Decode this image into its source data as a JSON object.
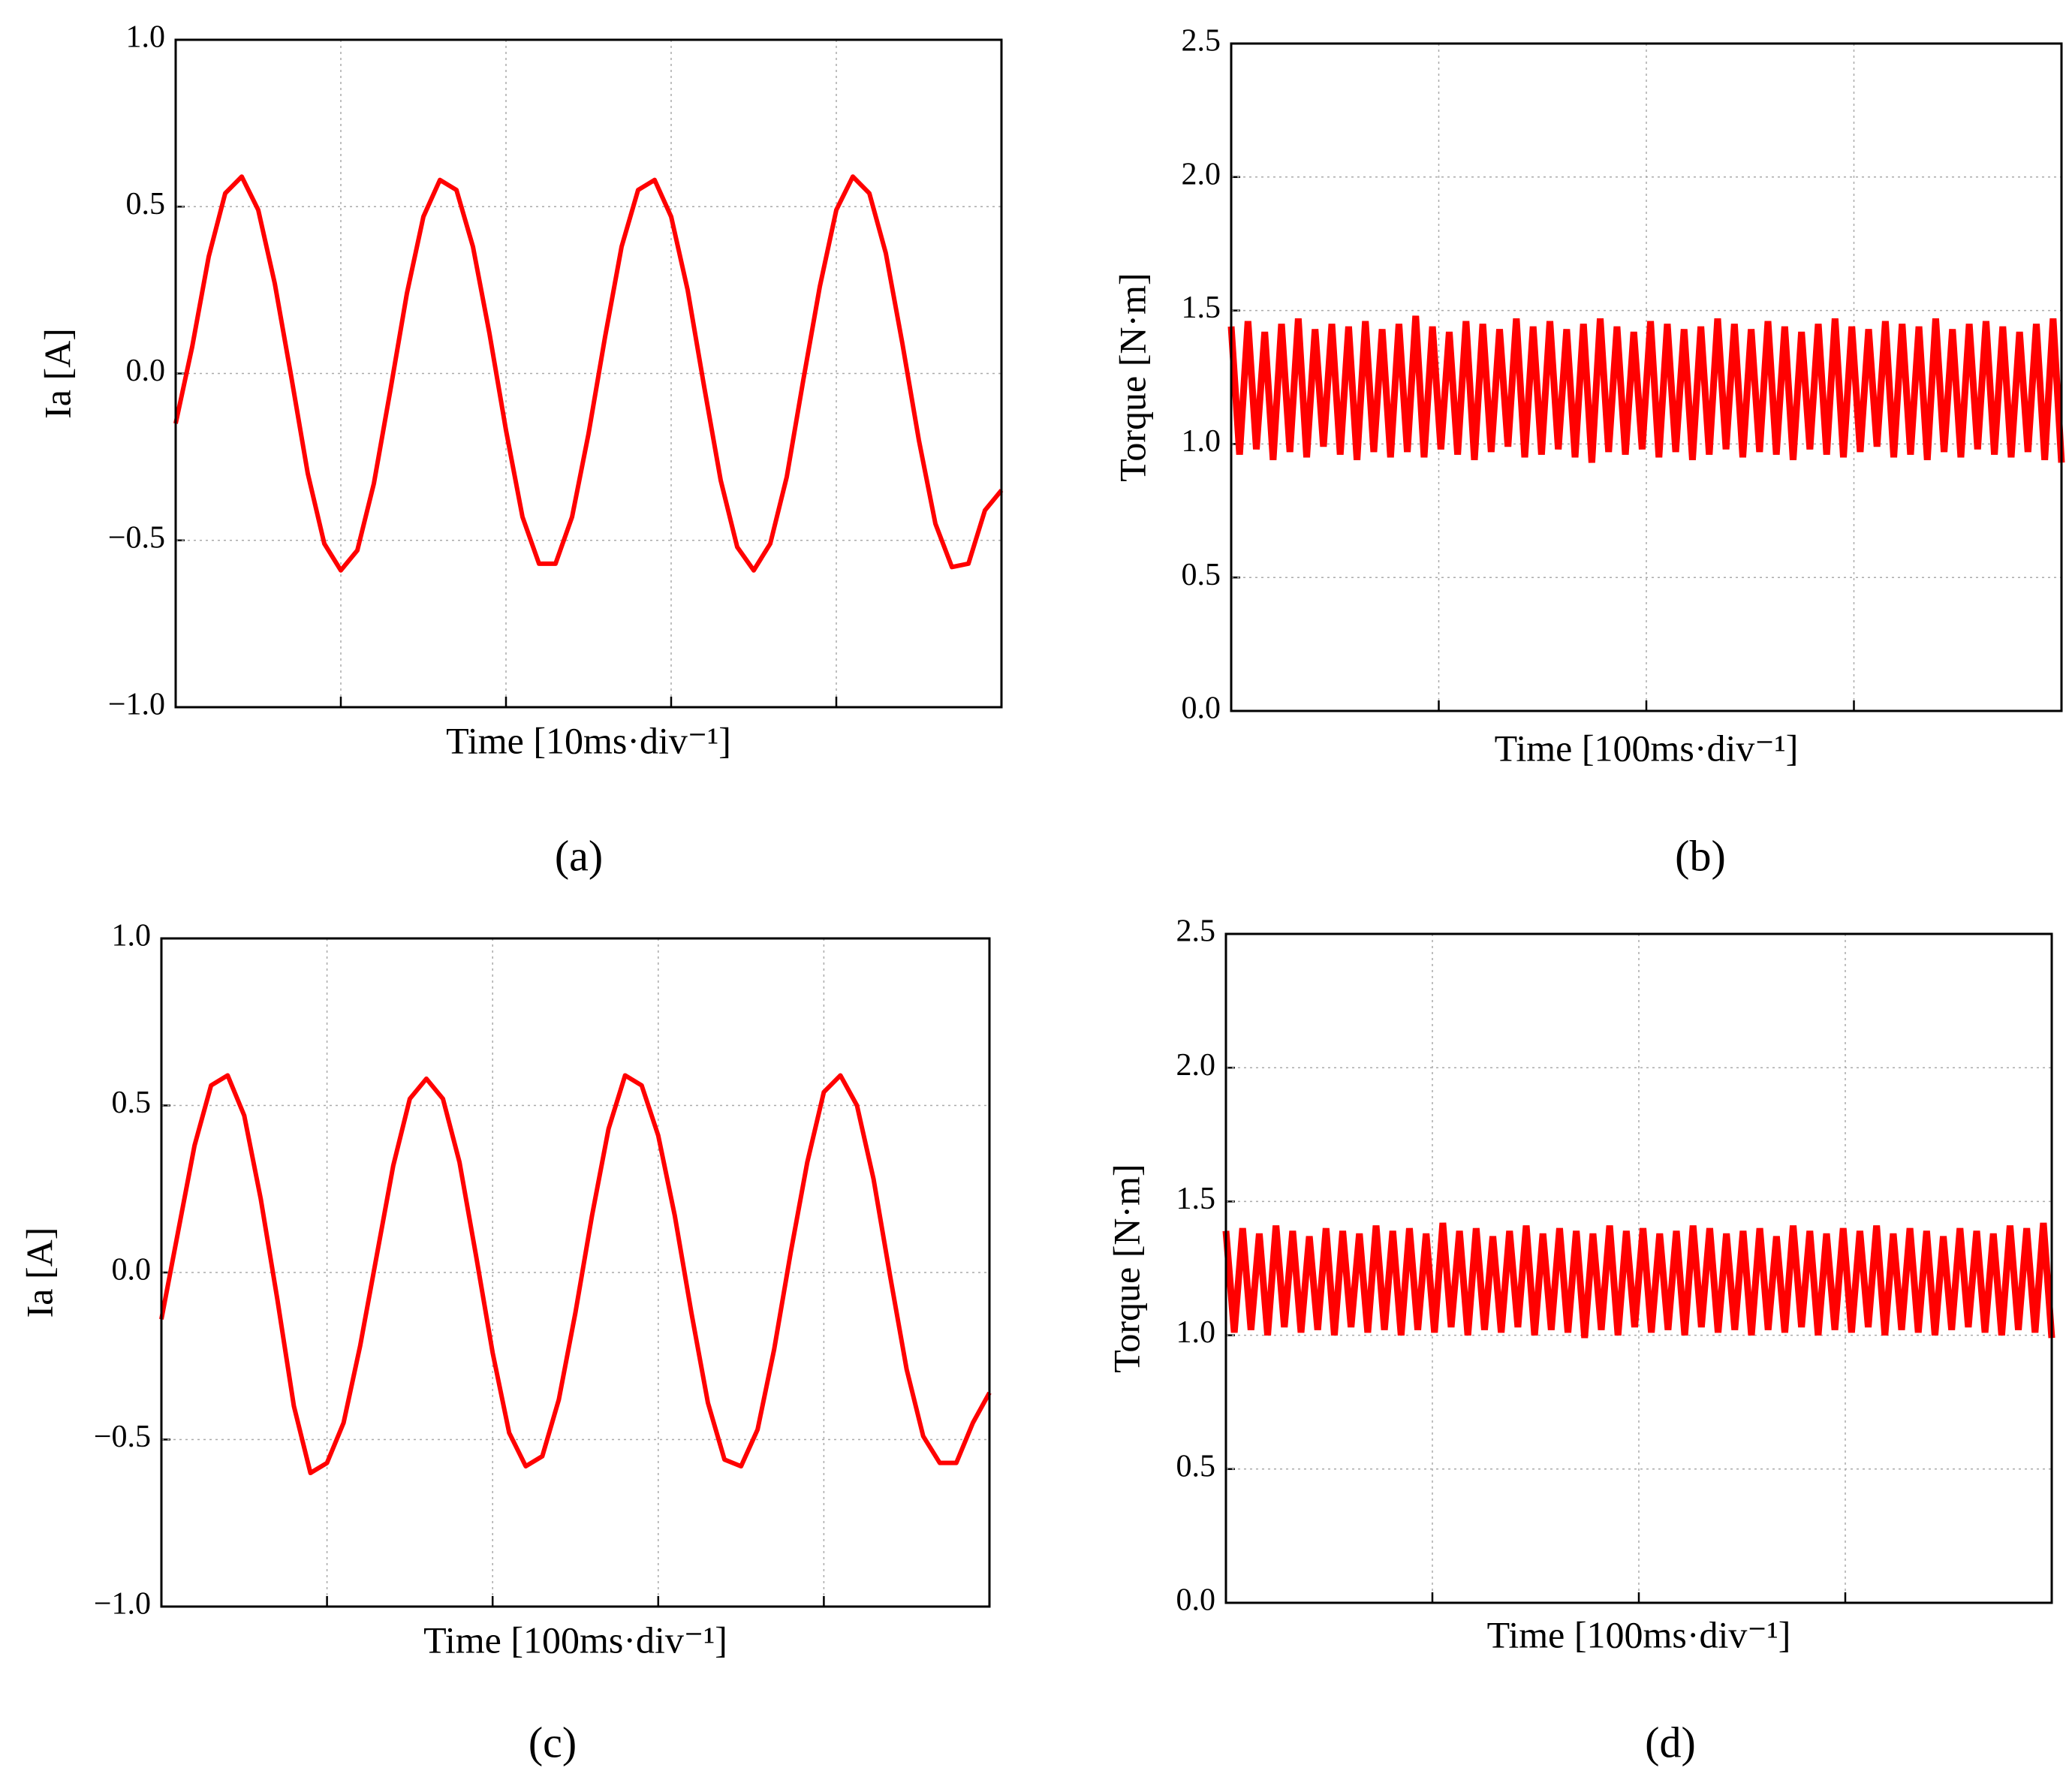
{
  "chart_data": [
    {
      "type": "line",
      "caption": "(a)",
      "xlabel": "Time [10ms·div⁻¹]",
      "ylabel": "Ia [A]",
      "color": "#ff0000",
      "xlim": [
        0,
        5
      ],
      "xticks": [
        1,
        2,
        3,
        4
      ],
      "ylim": [
        -1,
        1
      ],
      "yticks": [
        {
          "value": -1,
          "label": "−1.0"
        },
        {
          "value": -0.5,
          "label": "−0.5"
        },
        {
          "value": 0,
          "label": "0.0"
        },
        {
          "value": 0.5,
          "label": "0.5"
        },
        {
          "value": 1,
          "label": "1.0"
        }
      ],
      "grid": true,
      "x": [
        0,
        0.1,
        0.2,
        0.3,
        0.4,
        0.5,
        0.6,
        0.7,
        0.8,
        0.9,
        1,
        1.1,
        1.2,
        1.3,
        1.4,
        1.5,
        1.6,
        1.7,
        1.8,
        1.9,
        2,
        2.1,
        2.2,
        2.3,
        2.4,
        2.5,
        2.6,
        2.7,
        2.8,
        2.9,
        3,
        3.1,
        3.2,
        3.3,
        3.4,
        3.5,
        3.6,
        3.7,
        3.8,
        3.9,
        4,
        4.1,
        4.2,
        4.3,
        4.4,
        4.5,
        4.6,
        4.7,
        4.8,
        4.9,
        5
      ],
      "values": [
        -0.15,
        0.08,
        0.35,
        0.54,
        0.59,
        0.49,
        0.27,
        -0.01,
        -0.3,
        -0.51,
        -0.59,
        -0.53,
        -0.33,
        -0.05,
        0.24,
        0.47,
        0.58,
        0.55,
        0.38,
        0.12,
        -0.17,
        -0.43,
        -0.57,
        -0.57,
        -0.43,
        -0.18,
        0.11,
        0.38,
        0.55,
        0.58,
        0.47,
        0.25,
        -0.04,
        -0.32,
        -0.52,
        -0.59,
        -0.51,
        -0.31,
        -0.02,
        0.26,
        0.49,
        0.59,
        0.54,
        0.36,
        0.09,
        -0.2,
        -0.45,
        -0.58,
        -0.57,
        -0.41,
        -0.35
      ]
    },
    {
      "type": "band",
      "caption": "(b)",
      "xlabel": "Time [100ms·div⁻¹]",
      "ylabel": "Torque [N·m]",
      "color": "#ff0000",
      "xlim": [
        0,
        4
      ],
      "xticks": [
        1,
        2,
        3
      ],
      "ylim": [
        0,
        2.5
      ],
      "yticks": [
        {
          "value": 0,
          "label": "0.0"
        },
        {
          "value": 0.5,
          "label": "0.5"
        },
        {
          "value": 1,
          "label": "1.0"
        },
        {
          "value": 1.5,
          "label": "1.5"
        },
        {
          "value": 2,
          "label": "2.0"
        },
        {
          "value": 2.5,
          "label": "2.5"
        }
      ],
      "grid": true,
      "values": [
        1.44,
        0.96,
        1.46,
        0.98,
        1.42,
        0.94,
        1.45,
        0.97,
        1.47,
        0.95,
        1.43,
        0.99,
        1.45,
        0.96,
        1.44,
        0.94,
        1.46,
        0.97,
        1.43,
        0.95,
        1.45,
        0.97,
        1.48,
        0.95,
        1.44,
        0.98,
        1.42,
        0.96,
        1.46,
        0.94,
        1.45,
        0.97,
        1.43,
        0.99,
        1.47,
        0.95,
        1.44,
        0.96,
        1.46,
        0.98,
        1.43,
        0.95,
        1.45,
        0.93,
        1.47,
        0.97,
        1.44,
        0.96,
        1.42,
        0.98,
        1.46,
        0.95,
        1.45,
        0.97,
        1.43,
        0.94,
        1.44,
        0.96,
        1.47,
        0.98,
        1.45,
        0.95,
        1.43,
        0.97,
        1.46,
        0.96,
        1.44,
        0.94,
        1.42,
        0.98,
        1.45,
        0.96,
        1.47,
        0.95,
        1.44,
        0.97,
        1.43,
        0.99,
        1.46,
        0.95,
        1.45,
        0.96,
        1.44,
        0.94,
        1.47,
        0.97,
        1.43,
        0.95,
        1.45,
        0.98,
        1.46,
        0.96,
        1.44,
        0.95,
        1.42,
        0.97,
        1.45,
        0.94,
        1.47,
        0.93
      ]
    },
    {
      "type": "line",
      "caption": "(c)",
      "xlabel": "Time [100ms·div⁻¹]",
      "ylabel": "Ia [A]",
      "color": "#ff0000",
      "xlim": [
        0,
        5
      ],
      "xticks": [
        1,
        2,
        3,
        4
      ],
      "ylim": [
        -1,
        1
      ],
      "yticks": [
        {
          "value": -1,
          "label": "−1.0"
        },
        {
          "value": -0.5,
          "label": "−0.5"
        },
        {
          "value": 0,
          "label": "0.0"
        },
        {
          "value": 0.5,
          "label": "0.5"
        },
        {
          "value": 1,
          "label": "1.0"
        }
      ],
      "grid": true,
      "x": [
        0,
        0.1,
        0.2,
        0.3,
        0.4,
        0.5,
        0.6,
        0.7,
        0.8,
        0.9,
        1,
        1.1,
        1.2,
        1.3,
        1.4,
        1.5,
        1.6,
        1.7,
        1.8,
        1.9,
        2,
        2.1,
        2.2,
        2.3,
        2.4,
        2.5,
        2.6,
        2.7,
        2.8,
        2.9,
        3,
        3.1,
        3.2,
        3.3,
        3.4,
        3.5,
        3.6,
        3.7,
        3.8,
        3.9,
        4,
        4.1,
        4.2,
        4.3,
        4.4,
        4.5,
        4.6,
        4.7,
        4.8,
        4.9,
        5
      ],
      "values": [
        -0.14,
        0.12,
        0.38,
        0.56,
        0.59,
        0.47,
        0.22,
        -0.08,
        -0.4,
        -0.6,
        -0.57,
        -0.45,
        -0.22,
        0.05,
        0.32,
        0.52,
        0.58,
        0.52,
        0.33,
        0.05,
        -0.24,
        -0.48,
        -0.58,
        -0.55,
        -0.38,
        -0.12,
        0.17,
        0.43,
        0.59,
        0.56,
        0.41,
        0.17,
        -0.12,
        -0.39,
        -0.56,
        -0.58,
        -0.47,
        -0.23,
        0.06,
        0.33,
        0.54,
        0.59,
        0.5,
        0.28,
        -0.01,
        -0.29,
        -0.49,
        -0.57,
        -0.57,
        -0.45,
        -0.36
      ]
    },
    {
      "type": "band",
      "caption": "(d)",
      "xlabel": "Time [100ms·div⁻¹]",
      "ylabel": "Torque [N·m]",
      "color": "#ff0000",
      "xlim": [
        0,
        4
      ],
      "xticks": [
        1,
        2,
        3
      ],
      "ylim": [
        0,
        2.5
      ],
      "yticks": [
        {
          "value": 0,
          "label": "0.0"
        },
        {
          "value": 0.5,
          "label": "0.5"
        },
        {
          "value": 1,
          "label": "1.0"
        },
        {
          "value": 1.5,
          "label": "1.5"
        },
        {
          "value": 2,
          "label": "2.0"
        },
        {
          "value": 2.5,
          "label": "2.5"
        }
      ],
      "grid": true,
      "values": [
        1.39,
        1.01,
        1.4,
        1.02,
        1.38,
        1.0,
        1.41,
        1.03,
        1.39,
        1.01,
        1.37,
        1.02,
        1.4,
        1.0,
        1.39,
        1.03,
        1.38,
        1.01,
        1.41,
        1.02,
        1.39,
        1.0,
        1.4,
        1.02,
        1.38,
        1.01,
        1.42,
        1.03,
        1.39,
        1.0,
        1.4,
        1.02,
        1.37,
        1.01,
        1.39,
        1.03,
        1.41,
        1.0,
        1.38,
        1.02,
        1.4,
        1.01,
        1.39,
        0.99,
        1.38,
        1.02,
        1.41,
        1.0,
        1.39,
        1.03,
        1.4,
        1.01,
        1.38,
        1.02,
        1.39,
        1.0,
        1.41,
        1.03,
        1.4,
        1.01,
        1.38,
        1.02,
        1.39,
        1.0,
        1.4,
        1.02,
        1.37,
        1.01,
        1.41,
        1.03,
        1.39,
        1.0,
        1.38,
        1.02,
        1.4,
        1.01,
        1.39,
        1.03,
        1.41,
        1.0,
        1.38,
        1.02,
        1.4,
        1.01,
        1.39,
        1.0,
        1.37,
        1.02,
        1.4,
        1.03,
        1.39,
        1.01,
        1.38,
        1.0,
        1.41,
        1.02,
        1.4,
        1.01,
        1.42,
        0.99
      ]
    }
  ]
}
